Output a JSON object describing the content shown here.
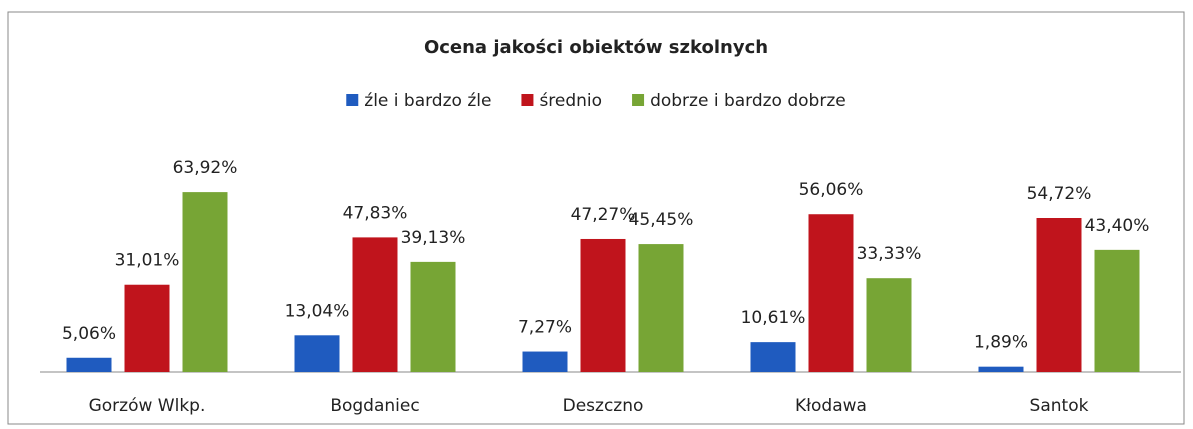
{
  "chart_data": {
    "type": "bar",
    "title": "Ocena jakości obiektów szkolnych",
    "categories": [
      "Gorzów Wlkp.",
      "Bogdaniec",
      "Deszczno",
      "Kłodawa",
      "Santok"
    ],
    "series": [
      {
        "name": "źle i bardzo źle",
        "color": "#1f5bbf",
        "values": [
          5.06,
          13.04,
          7.27,
          10.61,
          1.89
        ],
        "value_labels": [
          "5,06%",
          "13,04%",
          "7,27%",
          "10,61%",
          "1,89%"
        ]
      },
      {
        "name": "średnio",
        "color": "#c0141c",
        "values": [
          31.01,
          47.83,
          47.27,
          56.06,
          54.72
        ],
        "value_labels": [
          "31,01%",
          "47,83%",
          "47,27%",
          "56,06%",
          "54,72%"
        ]
      },
      {
        "name": "dobrze i bardzo dobrze",
        "color": "#77a535",
        "values": [
          63.92,
          39.13,
          45.45,
          33.33,
          43.4
        ],
        "value_labels": [
          "63,92%",
          "39,13%",
          "45,45%",
          "33,33%",
          "43,40%"
        ]
      }
    ],
    "ylim": [
      0,
      70
    ],
    "legend": "top"
  }
}
